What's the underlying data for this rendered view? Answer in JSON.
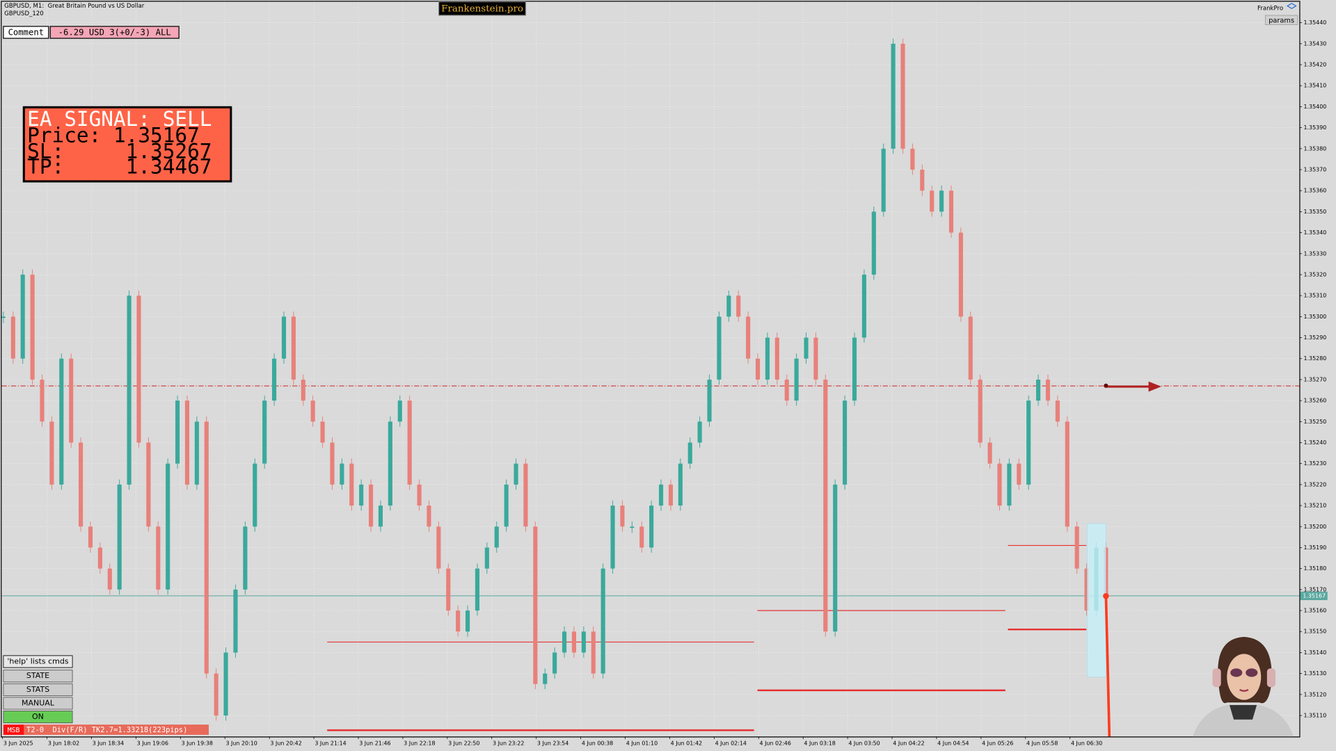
{
  "header": {
    "symbol": "GBPUSD, M1:  Great Britain Pound vs US Dollar",
    "subtitle": "GBPUSD_120",
    "brand": "Frankenstein.pro",
    "account": "FrankPro",
    "params": "params"
  },
  "comment": {
    "label": "Comment",
    "value": "-6.29 USD 3(+0/-3) ALL"
  },
  "signal": {
    "lines": [
      "EA SIGNAL: SELL",
      "Price: 1.35167",
      "SL:     1.35267",
      "TP:     1.34467"
    ]
  },
  "buttons": [
    "'help' lists cmds",
    "STATE",
    "STATS",
    "MANUAL",
    "ON"
  ],
  "status": {
    "tag": "MSB",
    "text": "T2-0  Div(F/R) TK2.7=1.33218(223pips)"
  },
  "chart_data": {
    "type": "candlestick",
    "x_labels": [
      "3 Jun 2025",
      "3 Jun 18:02",
      "3 Jun 18:34",
      "3 Jun 19:06",
      "3 Jun 19:38",
      "3 Jun 20:10",
      "3 Jun 20:42",
      "3 Jun 21:14",
      "3 Jun 21:46",
      "3 Jun 22:18",
      "3 Jun 22:50",
      "3 Jun 23:22",
      "3 Jun 23:54",
      "4 Jun 00:38",
      "4 Jun 01:10",
      "4 Jun 01:42",
      "4 Jun 02:14",
      "4 Jun 02:46",
      "4 Jun 03:18",
      "4 Jun 03:50",
      "4 Jun 04:22",
      "4 Jun 04:54",
      "4 Jun 05:26",
      "4 Jun 05:58",
      "4 Jun 06:30"
    ],
    "series": [
      {
        "up_color": "#3aa99c",
        "down_color": "#e8807a",
        "values": [
          1.353,
          1.3528,
          1.3532,
          1.3527,
          1.3525,
          1.3522,
          1.3528,
          1.3524,
          1.352,
          1.3519,
          1.3518,
          1.3517,
          1.3522,
          1.3531,
          1.3524,
          1.352,
          1.3517,
          1.3523,
          1.3526,
          1.3522,
          1.3525,
          1.3513,
          1.3511,
          1.3514,
          1.3517,
          1.352,
          1.3523,
          1.3526,
          1.3528,
          1.353,
          1.3527,
          1.3526,
          1.3525,
          1.3524,
          1.3522,
          1.3523,
          1.3521,
          1.3522,
          1.352,
          1.3521,
          1.3525,
          1.3526,
          1.3522,
          1.3521,
          1.352,
          1.3518,
          1.3516,
          1.3515,
          1.3516,
          1.3518,
          1.3519,
          1.352,
          1.3522,
          1.3523,
          1.352,
          1.35125,
          1.3513,
          1.3514,
          1.3515,
          1.3514,
          1.3515,
          1.3513,
          1.3518,
          1.3521,
          1.352,
          1.352,
          1.3519,
          1.3521,
          1.3522,
          1.3521,
          1.3523,
          1.3524,
          1.3525,
          1.3527,
          1.353,
          1.3531,
          1.353,
          1.3528,
          1.3527,
          1.3529,
          1.3527,
          1.3526,
          1.3528,
          1.3529,
          1.3527,
          1.3515,
          1.3522,
          1.3526,
          1.3529,
          1.3532,
          1.3535,
          1.3538,
          1.3543,
          1.3538,
          1.3537,
          1.3536,
          1.3535,
          1.3536,
          1.3534,
          1.353,
          1.3527,
          1.3524,
          1.3523,
          1.3521,
          1.3523,
          1.3522,
          1.3526,
          1.3527,
          1.3526,
          1.3525,
          1.352,
          1.3518,
          1.3516,
          1.3519,
          1.35167
        ]
      }
    ],
    "bid": 1.35167,
    "bid_color": "#5aa8a0",
    "stop_level": 1.35267,
    "stop_color": "#d02020",
    "levels": [
      {
        "value": 1.35145,
        "color": "#e83030"
      },
      {
        "value": 1.35103,
        "color": "#e83030"
      },
      {
        "value": 1.3516,
        "color": "#e83030"
      },
      {
        "value": 1.35122,
        "color": "#e83030"
      },
      {
        "value": 1.35191,
        "color": "#e83030"
      },
      {
        "value": 1.35151,
        "color": "#e83030"
      }
    ],
    "ylim": [
      1.351,
      1.3545
    ],
    "yticks": [
      {
        "value": 1.3511,
        "label": "1.35110"
      },
      {
        "value": 1.3512,
        "label": "1.35120"
      },
      {
        "value": 1.3513,
        "label": "1.35130"
      },
      {
        "value": 1.3514,
        "label": "1.35140"
      },
      {
        "value": 1.3515,
        "label": "1.35150"
      },
      {
        "value": 1.3516,
        "label": "1.35160"
      },
      {
        "value": 1.3517,
        "label": "1.35170"
      },
      {
        "value": 1.3518,
        "label": "1.35180"
      },
      {
        "value": 1.3519,
        "label": "1.35190"
      },
      {
        "value": 1.352,
        "label": "1.35200"
      },
      {
        "value": 1.3521,
        "label": "1.35210"
      },
      {
        "value": 1.3522,
        "label": "1.35220"
      },
      {
        "value": 1.3523,
        "label": "1.35230"
      },
      {
        "value": 1.3524,
        "label": "1.35240"
      },
      {
        "value": 1.3525,
        "label": "1.35250"
      },
      {
        "value": 1.3526,
        "label": "1.35260"
      },
      {
        "value": 1.3527,
        "label": "1.35270"
      },
      {
        "value": 1.3528,
        "label": "1.35280"
      },
      {
        "value": 1.3529,
        "label": "1.35290"
      },
      {
        "value": 1.353,
        "label": "1.35300"
      },
      {
        "value": 1.3531,
        "label": "1.35310"
      },
      {
        "value": 1.3532,
        "label": "1.35320"
      },
      {
        "value": 1.3533,
        "label": "1.35330"
      },
      {
        "value": 1.3534,
        "label": "1.35340"
      },
      {
        "value": 1.3535,
        "label": "1.35350"
      },
      {
        "value": 1.3536,
        "label": "1.35360"
      },
      {
        "value": 1.3537,
        "label": "1.35370"
      },
      {
        "value": 1.3538,
        "label": "1.35380"
      },
      {
        "value": 1.3539,
        "label": "1.35390"
      },
      {
        "value": 1.354,
        "label": "1.35400"
      },
      {
        "value": 1.3541,
        "label": "1.35410"
      },
      {
        "value": 1.3542,
        "label": "1.35420"
      },
      {
        "value": 1.3543,
        "label": "1.35430"
      },
      {
        "value": 1.3544,
        "label": "1.35440"
      }
    ],
    "grid": true
  }
}
